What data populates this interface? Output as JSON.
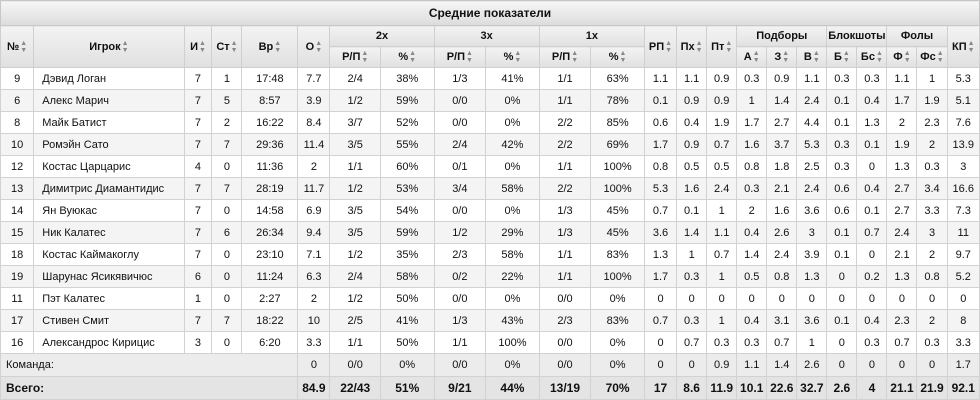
{
  "title": "Средние показатели",
  "groups": {
    "two": "2х",
    "three": "3х",
    "one": "1х",
    "reb": "Подборы",
    "blk": "Блокшоты",
    "foul": "Фолы"
  },
  "headers": {
    "no": "№",
    "player": "Игрок",
    "gp": "И",
    "gs": "Ст",
    "min": "Вр",
    "pts": "О",
    "fg2": "Р/П",
    "fg2p": "%",
    "fg3": "Р/П",
    "fg3p": "%",
    "ft": "Р/П",
    "ftp": "%",
    "ast": "РП",
    "stl": "Пх",
    "tov": "Пт",
    "oreb": "А",
    "dreb": "З",
    "treb": "В",
    "blk": "Б",
    "blka": "Бс",
    "pf": "Ф",
    "fd": "Фс",
    "eff": "КП"
  },
  "players": [
    {
      "cells": [
        "9",
        "Дэвид Логан",
        "7",
        "1",
        "17:48",
        "7.7",
        "2/4",
        "38%",
        "1/3",
        "41%",
        "1/1",
        "63%",
        "1.1",
        "1.1",
        "0.9",
        "0.3",
        "0.9",
        "1.1",
        "0.3",
        "0.3",
        "1.1",
        "1",
        "5.3"
      ]
    },
    {
      "cells": [
        "6",
        "Алекс Марич",
        "7",
        "5",
        "8:57",
        "3.9",
        "1/2",
        "59%",
        "0/0",
        "0%",
        "1/1",
        "78%",
        "0.1",
        "0.9",
        "0.9",
        "1",
        "1.4",
        "2.4",
        "0.1",
        "0.4",
        "1.7",
        "1.9",
        "5.1"
      ]
    },
    {
      "cells": [
        "8",
        "Майк Батист",
        "7",
        "2",
        "16:22",
        "8.4",
        "3/7",
        "52%",
        "0/0",
        "0%",
        "2/2",
        "85%",
        "0.6",
        "0.4",
        "1.9",
        "1.7",
        "2.7",
        "4.4",
        "0.1",
        "1.3",
        "2",
        "2.3",
        "7.6"
      ]
    },
    {
      "cells": [
        "10",
        "Ромэйн Сато",
        "7",
        "7",
        "29:36",
        "11.4",
        "3/5",
        "55%",
        "2/4",
        "42%",
        "2/2",
        "69%",
        "1.7",
        "0.9",
        "0.7",
        "1.6",
        "3.7",
        "5.3",
        "0.3",
        "0.1",
        "1.9",
        "2",
        "13.9"
      ]
    },
    {
      "cells": [
        "12",
        "Костас Царцарис",
        "4",
        "0",
        "11:36",
        "2",
        "1/1",
        "60%",
        "0/1",
        "0%",
        "1/1",
        "100%",
        "0.8",
        "0.5",
        "0.5",
        "0.8",
        "1.8",
        "2.5",
        "0.3",
        "0",
        "1.3",
        "0.3",
        "3"
      ]
    },
    {
      "cells": [
        "13",
        "Димитрис Диамантидис",
        "7",
        "7",
        "28:19",
        "11.7",
        "1/2",
        "53%",
        "3/4",
        "58%",
        "2/2",
        "100%",
        "5.3",
        "1.6",
        "2.4",
        "0.3",
        "2.1",
        "2.4",
        "0.6",
        "0.4",
        "2.7",
        "3.4",
        "16.6"
      ]
    },
    {
      "cells": [
        "14",
        "Ян Вуюкас",
        "7",
        "0",
        "14:58",
        "6.9",
        "3/5",
        "54%",
        "0/0",
        "0%",
        "1/3",
        "45%",
        "0.7",
        "0.1",
        "1",
        "2",
        "1.6",
        "3.6",
        "0.6",
        "0.1",
        "2.7",
        "3.3",
        "7.3"
      ]
    },
    {
      "cells": [
        "15",
        "Ник Калатес",
        "7",
        "6",
        "26:34",
        "9.4",
        "3/5",
        "59%",
        "1/2",
        "29%",
        "1/3",
        "45%",
        "3.6",
        "1.4",
        "1.1",
        "0.4",
        "2.6",
        "3",
        "0.1",
        "0.7",
        "2.4",
        "3",
        "11"
      ]
    },
    {
      "cells": [
        "18",
        "Костас Каймакоглу",
        "7",
        "0",
        "23:10",
        "7.1",
        "1/2",
        "35%",
        "2/3",
        "58%",
        "1/1",
        "83%",
        "1.3",
        "1",
        "0.7",
        "1.4",
        "2.4",
        "3.9",
        "0.1",
        "0",
        "2.1",
        "2",
        "9.7"
      ]
    },
    {
      "cells": [
        "19",
        "Шарунас Ясикявичюс",
        "6",
        "0",
        "11:24",
        "6.3",
        "2/4",
        "58%",
        "0/2",
        "22%",
        "1/1",
        "100%",
        "1.7",
        "0.3",
        "1",
        "0.5",
        "0.8",
        "1.3",
        "0",
        "0.2",
        "1.3",
        "0.8",
        "5.2"
      ]
    },
    {
      "cells": [
        "11",
        "Пэт Калатес",
        "1",
        "0",
        "2:27",
        "2",
        "1/2",
        "50%",
        "0/0",
        "0%",
        "0/0",
        "0%",
        "0",
        "0",
        "0",
        "0",
        "0",
        "0",
        "0",
        "0",
        "0",
        "0",
        "0"
      ]
    },
    {
      "cells": [
        "17",
        "Стивен Смит",
        "7",
        "7",
        "18:22",
        "10",
        "2/5",
        "41%",
        "1/3",
        "43%",
        "2/3",
        "83%",
        "0.7",
        "0.3",
        "1",
        "0.4",
        "3.1",
        "3.6",
        "0.1",
        "0.4",
        "2.3",
        "2",
        "8"
      ]
    },
    {
      "cells": [
        "16",
        "Александрос Кирицис",
        "3",
        "0",
        "6:20",
        "3.3",
        "1/1",
        "50%",
        "1/1",
        "100%",
        "0/0",
        "0%",
        "0",
        "0.7",
        "0.3",
        "0.3",
        "0.7",
        "1",
        "0",
        "0.3",
        "0.7",
        "0.3",
        "3.3"
      ]
    }
  ],
  "team": {
    "label": "Команда:",
    "cells": [
      "0",
      "0/0",
      "0%",
      "0/0",
      "0%",
      "0/0",
      "0%",
      "0",
      "0",
      "0.9",
      "1.1",
      "1.4",
      "2.6",
      "0",
      "0",
      "0",
      "0",
      "1.7"
    ]
  },
  "total": {
    "label": "Всего:",
    "cells": [
      "84.9",
      "22/43",
      "51%",
      "9/21",
      "44%",
      "13/19",
      "70%",
      "17",
      "8.6",
      "11.9",
      "10.1",
      "22.6",
      "32.7",
      "2.6",
      "4",
      "21.1",
      "21.9",
      "92.1"
    ]
  },
  "icons": {
    "sort": "sort-arrows-icon"
  }
}
